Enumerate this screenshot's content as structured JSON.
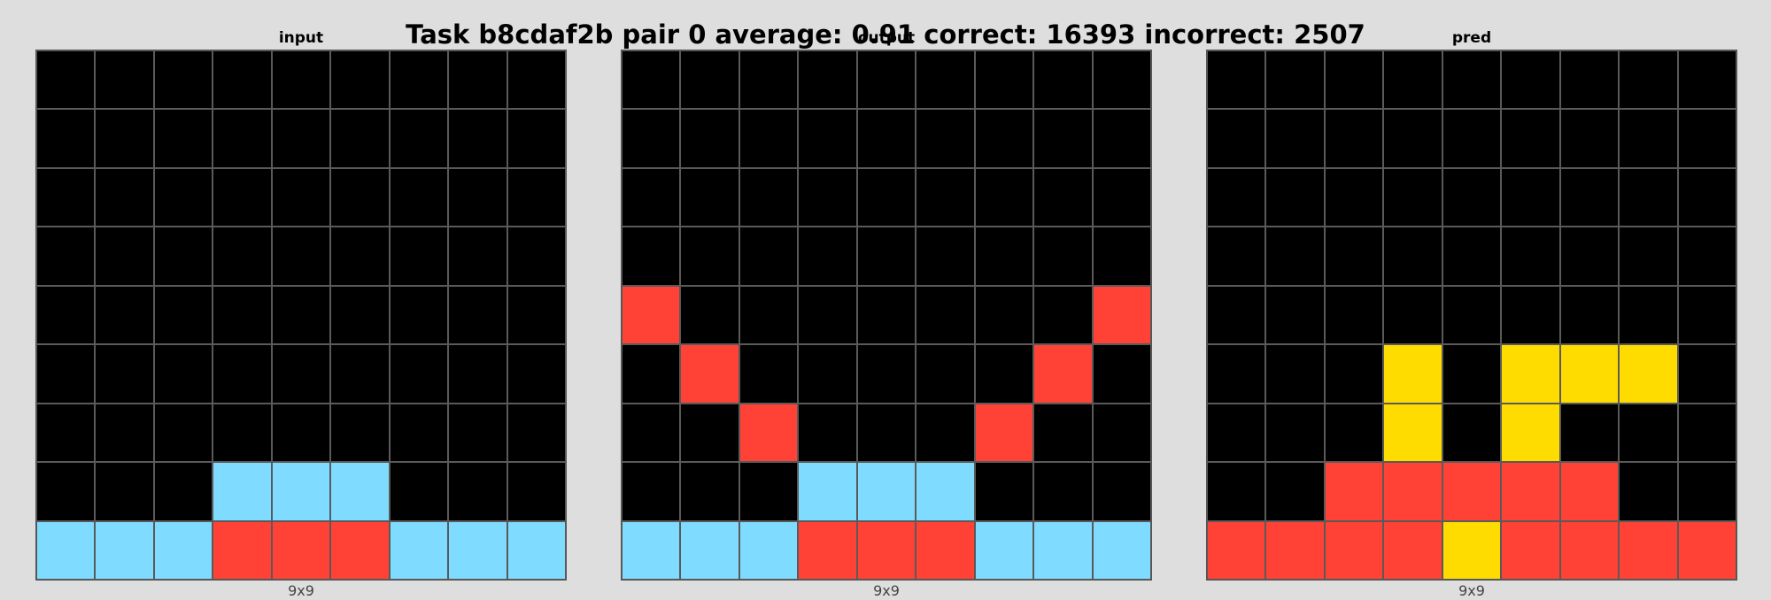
{
  "title": "Task b8cdaf2b pair 0 average: 0.91 correct: 16393 incorrect: 2507",
  "palette": {
    "0": "#000000",
    "1": "#1e93ff",
    "2": "#ff4136",
    "3": "#2ecc40",
    "4": "#ffdc00",
    "5": "#aaaaaa",
    "6": "#f012be",
    "7": "#ff851b",
    "8": "#7fdbff",
    "9": "#870c25"
  },
  "panels": [
    {
      "title": "input",
      "size_label": "9x9",
      "grid": [
        [
          0,
          0,
          0,
          0,
          0,
          0,
          0,
          0,
          0
        ],
        [
          0,
          0,
          0,
          0,
          0,
          0,
          0,
          0,
          0
        ],
        [
          0,
          0,
          0,
          0,
          0,
          0,
          0,
          0,
          0
        ],
        [
          0,
          0,
          0,
          0,
          0,
          0,
          0,
          0,
          0
        ],
        [
          0,
          0,
          0,
          0,
          0,
          0,
          0,
          0,
          0
        ],
        [
          0,
          0,
          0,
          0,
          0,
          0,
          0,
          0,
          0
        ],
        [
          0,
          0,
          0,
          0,
          0,
          0,
          0,
          0,
          0
        ],
        [
          0,
          0,
          0,
          8,
          8,
          8,
          0,
          0,
          0
        ],
        [
          8,
          8,
          8,
          2,
          2,
          2,
          8,
          8,
          8
        ]
      ]
    },
    {
      "title": "output",
      "size_label": "9x9",
      "grid": [
        [
          0,
          0,
          0,
          0,
          0,
          0,
          0,
          0,
          0
        ],
        [
          0,
          0,
          0,
          0,
          0,
          0,
          0,
          0,
          0
        ],
        [
          0,
          0,
          0,
          0,
          0,
          0,
          0,
          0,
          0
        ],
        [
          0,
          0,
          0,
          0,
          0,
          0,
          0,
          0,
          0
        ],
        [
          2,
          0,
          0,
          0,
          0,
          0,
          0,
          0,
          2
        ],
        [
          0,
          2,
          0,
          0,
          0,
          0,
          0,
          2,
          0
        ],
        [
          0,
          0,
          2,
          0,
          0,
          0,
          2,
          0,
          0
        ],
        [
          0,
          0,
          0,
          8,
          8,
          8,
          0,
          0,
          0
        ],
        [
          8,
          8,
          8,
          2,
          2,
          2,
          8,
          8,
          8
        ]
      ]
    },
    {
      "title": "pred",
      "size_label": "9x9",
      "grid": [
        [
          0,
          0,
          0,
          0,
          0,
          0,
          0,
          0,
          0
        ],
        [
          0,
          0,
          0,
          0,
          0,
          0,
          0,
          0,
          0
        ],
        [
          0,
          0,
          0,
          0,
          0,
          0,
          0,
          0,
          0
        ],
        [
          0,
          0,
          0,
          0,
          0,
          0,
          0,
          0,
          0
        ],
        [
          0,
          0,
          0,
          0,
          0,
          0,
          0,
          0,
          0
        ],
        [
          0,
          0,
          0,
          4,
          0,
          4,
          4,
          4,
          0
        ],
        [
          0,
          0,
          0,
          4,
          0,
          4,
          0,
          0,
          0
        ],
        [
          0,
          0,
          2,
          2,
          2,
          2,
          2,
          0,
          0
        ],
        [
          2,
          2,
          2,
          2,
          4,
          2,
          2,
          2,
          2
        ]
      ]
    }
  ]
}
